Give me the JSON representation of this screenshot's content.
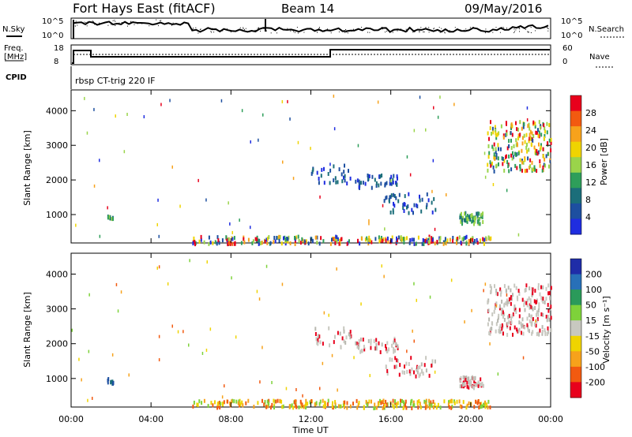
{
  "header": {
    "station": "Fort Hays East (fitACF)",
    "beam": "Beam 14",
    "date": "09/May/2016"
  },
  "top_panels": {
    "nsky_label": "N.Sky",
    "nsky_ticks": [
      "10^5",
      "10^0"
    ],
    "nsearch_label": "N.Search",
    "nsearch_ticks": [
      "10^5",
      "10^0"
    ],
    "freq_label_1": "Freq.",
    "freq_label_2": "[MHz]",
    "freq_ticks": [
      "18",
      "8"
    ],
    "nave_label": "Nave",
    "nave_ticks": [
      "60",
      "0"
    ],
    "cpid_label": "CPID",
    "cpid_text": "rbsp CT-trig 220 IF"
  },
  "colorbars": {
    "power": {
      "label": "Power [dB]",
      "ticks": [
        "28",
        "24",
        "20",
        "16",
        "12",
        "8",
        "4"
      ],
      "colors": [
        "#e8001c",
        "#f25a10",
        "#f7a21b",
        "#efd400",
        "#9ad44a",
        "#2e9e5a",
        "#1b6e7a",
        "#1d4fa0",
        "#1f2de0"
      ]
    },
    "velocity": {
      "label": "Velocity [m s⁻¹]",
      "ticks": [
        "200",
        "100",
        "50",
        "15",
        "-15",
        "-50",
        "-100",
        "-200"
      ],
      "colors": [
        "#1f2da8",
        "#2870b8",
        "#2a9a5a",
        "#7ed23a",
        "#c8c8c0",
        "#efd400",
        "#f7a21b",
        "#f25a10",
        "#e8001c"
      ]
    }
  },
  "chart_data": [
    {
      "type": "heatmap",
      "name": "power",
      "ylabel": "Slant Range [km]",
      "y_ticks": [
        "1000",
        "2000",
        "3000",
        "4000"
      ],
      "ylim": [
        180,
        4600
      ],
      "xlim": [
        0,
        24
      ],
      "clusters": [
        {
          "x0": 6.0,
          "x1": 21.0,
          "y0": 200,
          "y1": 420,
          "n": 260,
          "palette": "mix"
        },
        {
          "x0": 7.8,
          "x1": 8.3,
          "y0": 200,
          "y1": 240,
          "n": 10,
          "palette": "red"
        },
        {
          "x0": 1.8,
          "x1": 2.1,
          "y0": 900,
          "y1": 1050,
          "n": 10,
          "palette": "green"
        },
        {
          "x0": 19.4,
          "x1": 20.6,
          "y0": 780,
          "y1": 1100,
          "n": 60,
          "palette": "green"
        },
        {
          "x0": 14.2,
          "x1": 16.4,
          "y0": 1800,
          "y1": 2200,
          "n": 45,
          "palette": "blue"
        },
        {
          "x0": 12.0,
          "x1": 14.0,
          "y0": 1950,
          "y1": 2500,
          "n": 30,
          "palette": "blue"
        },
        {
          "x0": 15.6,
          "x1": 18.2,
          "y0": 1100,
          "y1": 1650,
          "n": 45,
          "palette": "blue"
        },
        {
          "x0": 20.8,
          "x1": 24.0,
          "y0": 2300,
          "y1": 3750,
          "n": 220,
          "palette": "hot"
        }
      ]
    },
    {
      "type": "heatmap",
      "name": "velocity",
      "ylabel": "Slant Range [km]",
      "y_ticks": [
        "1000",
        "2000",
        "3000",
        "4000"
      ],
      "ylim": [
        180,
        4600
      ],
      "xlim": [
        0,
        24
      ],
      "x_ticks": [
        "00:00",
        "04:00",
        "08:00",
        "12:00",
        "16:00",
        "20:00",
        "00:00"
      ],
      "xlabel": "Time UT",
      "clusters": [
        {
          "x0": 6.0,
          "x1": 21.0,
          "y0": 200,
          "y1": 420,
          "n": 260,
          "palette": "orange"
        },
        {
          "x0": 1.8,
          "x1": 2.1,
          "y0": 900,
          "y1": 1050,
          "n": 10,
          "palette": "blue"
        },
        {
          "x0": 19.4,
          "x1": 20.6,
          "y0": 780,
          "y1": 1100,
          "n": 60,
          "palette": "grey"
        },
        {
          "x0": 14.2,
          "x1": 16.4,
          "y0": 1800,
          "y1": 2200,
          "n": 45,
          "palette": "grey"
        },
        {
          "x0": 12.0,
          "x1": 14.0,
          "y0": 1950,
          "y1": 2500,
          "n": 30,
          "palette": "grey"
        },
        {
          "x0": 15.6,
          "x1": 18.2,
          "y0": 1100,
          "y1": 1650,
          "n": 45,
          "palette": "grey"
        },
        {
          "x0": 20.8,
          "x1": 24.0,
          "y0": 2300,
          "y1": 3750,
          "n": 220,
          "palette": "grey"
        }
      ]
    }
  ]
}
